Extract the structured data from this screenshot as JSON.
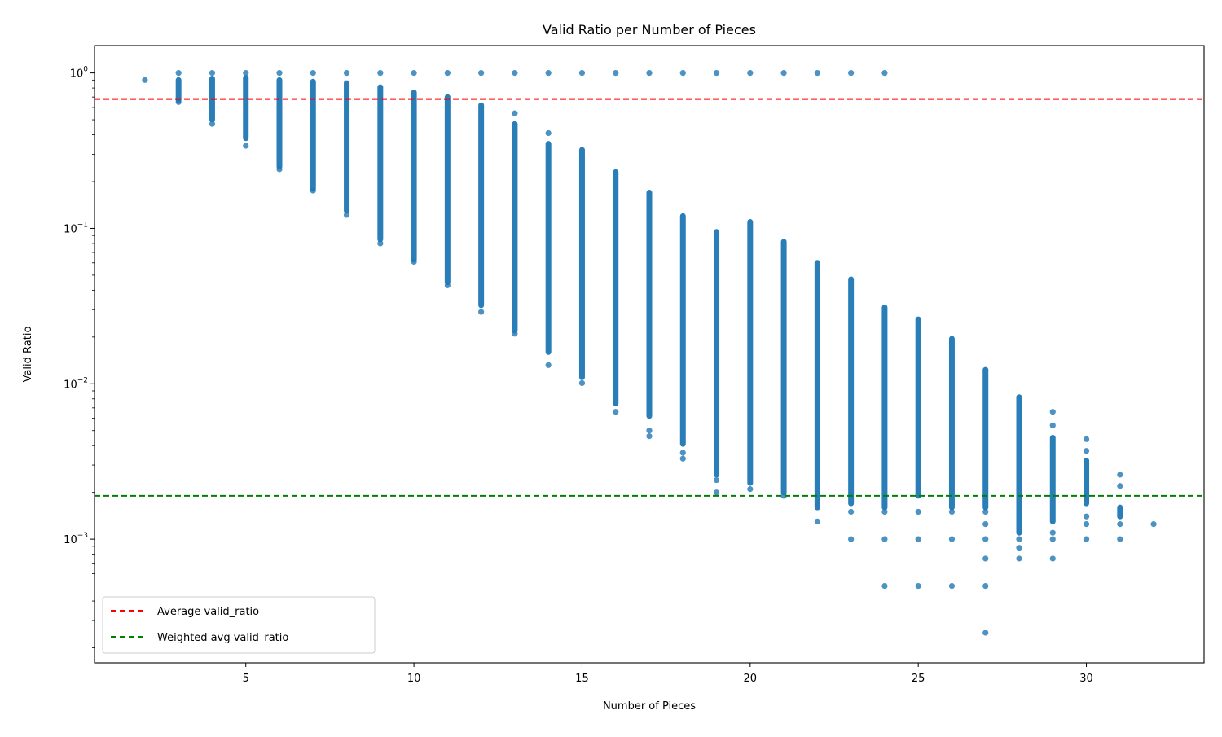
{
  "chart_data": {
    "type": "scatter",
    "title": "Valid Ratio per Number of Pieces",
    "xlabel": "Number of Pieces",
    "ylabel": "Valid Ratio",
    "xlim": [
      0.5,
      33.5
    ],
    "ylim": [
      0.00016,
      1.5
    ],
    "yscale": "log",
    "grid": false,
    "legend_location": "lower-left",
    "x_ticks": [
      {
        "value": 5,
        "label": "5"
      },
      {
        "value": 10,
        "label": "10"
      },
      {
        "value": 15,
        "label": "15"
      },
      {
        "value": 20,
        "label": "20"
      },
      {
        "value": 25,
        "label": "25"
      },
      {
        "value": 30,
        "label": "30"
      }
    ],
    "y_ticks": [
      {
        "value": 1,
        "base": "10",
        "exp": "0"
      },
      {
        "value": 0.1,
        "base": "10",
        "exp": "−1"
      },
      {
        "value": 0.01,
        "base": "10",
        "exp": "−2"
      },
      {
        "value": 0.001,
        "base": "10",
        "exp": "−3"
      }
    ],
    "colors": {
      "points": "#1f77b4",
      "average": "#ff0000",
      "weighted": "#008000",
      "axes": "#000000"
    },
    "hlines": [
      {
        "name": "Average valid_ratio",
        "value": 0.68,
        "color": "#ff0000",
        "style": "dashed"
      },
      {
        "name": "Weighted avg valid_ratio",
        "value": 0.0019,
        "color": "#008000",
        "style": "dashed"
      }
    ],
    "series": [
      {
        "color": "#1f77b4",
        "columns": [
          {
            "x": 2,
            "range": [
              0.9,
              0.9
            ],
            "isolated": [
              0.9
            ]
          },
          {
            "x": 3,
            "range": [
              0.67,
              0.9
            ],
            "isolated": [
              0.65,
              1.0
            ]
          },
          {
            "x": 4,
            "range": [
              0.5,
              0.92
            ],
            "isolated": [
              0.47,
              1.0
            ]
          },
          {
            "x": 5,
            "range": [
              0.38,
              0.93
            ],
            "isolated": [
              0.34,
              1.0
            ]
          },
          {
            "x": 6,
            "range": [
              0.25,
              0.9
            ],
            "isolated": [
              0.24,
              1.0
            ]
          },
          {
            "x": 7,
            "range": [
              0.18,
              0.88
            ],
            "isolated": [
              0.175,
              1.0
            ]
          },
          {
            "x": 8,
            "range": [
              0.13,
              0.86
            ],
            "isolated": [
              0.122,
              1.0
            ]
          },
          {
            "x": 9,
            "range": [
              0.085,
              0.81
            ],
            "isolated": [
              0.08,
              1.0
            ]
          },
          {
            "x": 10,
            "range": [
              0.063,
              0.75
            ],
            "isolated": [
              0.061,
              1.0
            ]
          },
          {
            "x": 11,
            "range": [
              0.045,
              0.7
            ],
            "isolated": [
              0.043,
              1.0
            ]
          },
          {
            "x": 12,
            "range": [
              0.032,
              0.62
            ],
            "isolated": [
              0.029,
              1.0
            ]
          },
          {
            "x": 13,
            "range": [
              0.022,
              0.47
            ],
            "isolated": [
              0.021,
              0.55,
              1.0
            ]
          },
          {
            "x": 14,
            "range": [
              0.016,
              0.35
            ],
            "isolated": [
              0.0132,
              0.41,
              1.0
            ]
          },
          {
            "x": 15,
            "range": [
              0.011,
              0.32
            ],
            "isolated": [
              0.0101,
              1.0
            ]
          },
          {
            "x": 16,
            "range": [
              0.0075,
              0.23
            ],
            "isolated": [
              0.0066,
              1.0
            ]
          },
          {
            "x": 17,
            "range": [
              0.0062,
              0.17
            ],
            "isolated": [
              0.0046,
              0.005,
              1.0
            ]
          },
          {
            "x": 18,
            "range": [
              0.0041,
              0.12
            ],
            "isolated": [
              0.0033,
              0.0036,
              1.0
            ]
          },
          {
            "x": 19,
            "range": [
              0.0026,
              0.095
            ],
            "isolated": [
              0.002,
              0.0024,
              1.0
            ]
          },
          {
            "x": 20,
            "range": [
              0.0023,
              0.11
            ],
            "isolated": [
              0.0021,
              1.0
            ]
          },
          {
            "x": 21,
            "range": [
              0.002,
              0.082
            ],
            "isolated": [
              0.0019,
              1.0
            ]
          },
          {
            "x": 22,
            "range": [
              0.0016,
              0.06
            ],
            "isolated": [
              0.0013,
              1.0
            ]
          },
          {
            "x": 23,
            "range": [
              0.0017,
              0.047
            ],
            "isolated": [
              0.0015,
              0.001,
              1.0
            ]
          },
          {
            "x": 24,
            "range": [
              0.0016,
              0.031
            ],
            "isolated": [
              0.0015,
              0.001,
              0.0005,
              1.0
            ]
          },
          {
            "x": 25,
            "range": [
              0.0019,
              0.026
            ],
            "isolated": [
              0.0015,
              0.001,
              0.0005
            ]
          },
          {
            "x": 26,
            "range": [
              0.0016,
              0.0195
            ],
            "isolated": [
              0.0015,
              0.001,
              0.0005
            ]
          },
          {
            "x": 27,
            "range": [
              0.0016,
              0.0123
            ],
            "isolated": [
              0.0015,
              0.00125,
              0.001,
              0.00075,
              0.0005,
              0.00025
            ]
          },
          {
            "x": 28,
            "range": [
              0.0011,
              0.0082
            ],
            "isolated": [
              0.001,
              0.00088,
              0.00075
            ]
          },
          {
            "x": 29,
            "range": [
              0.0013,
              0.0045
            ],
            "isolated": [
              0.0011,
              0.001,
              0.00075,
              0.0054,
              0.0066
            ]
          },
          {
            "x": 30,
            "range": [
              0.0017,
              0.0032
            ],
            "isolated": [
              0.0014,
              0.00125,
              0.001,
              0.0037,
              0.0044
            ]
          },
          {
            "x": 31,
            "range": [
              0.0014,
              0.0016
            ],
            "isolated": [
              0.00125,
              0.001,
              0.0022,
              0.0026
            ]
          },
          {
            "x": 32,
            "range": [
              0.00125,
              0.00125
            ],
            "isolated": [
              0.00125
            ]
          }
        ]
      }
    ]
  }
}
